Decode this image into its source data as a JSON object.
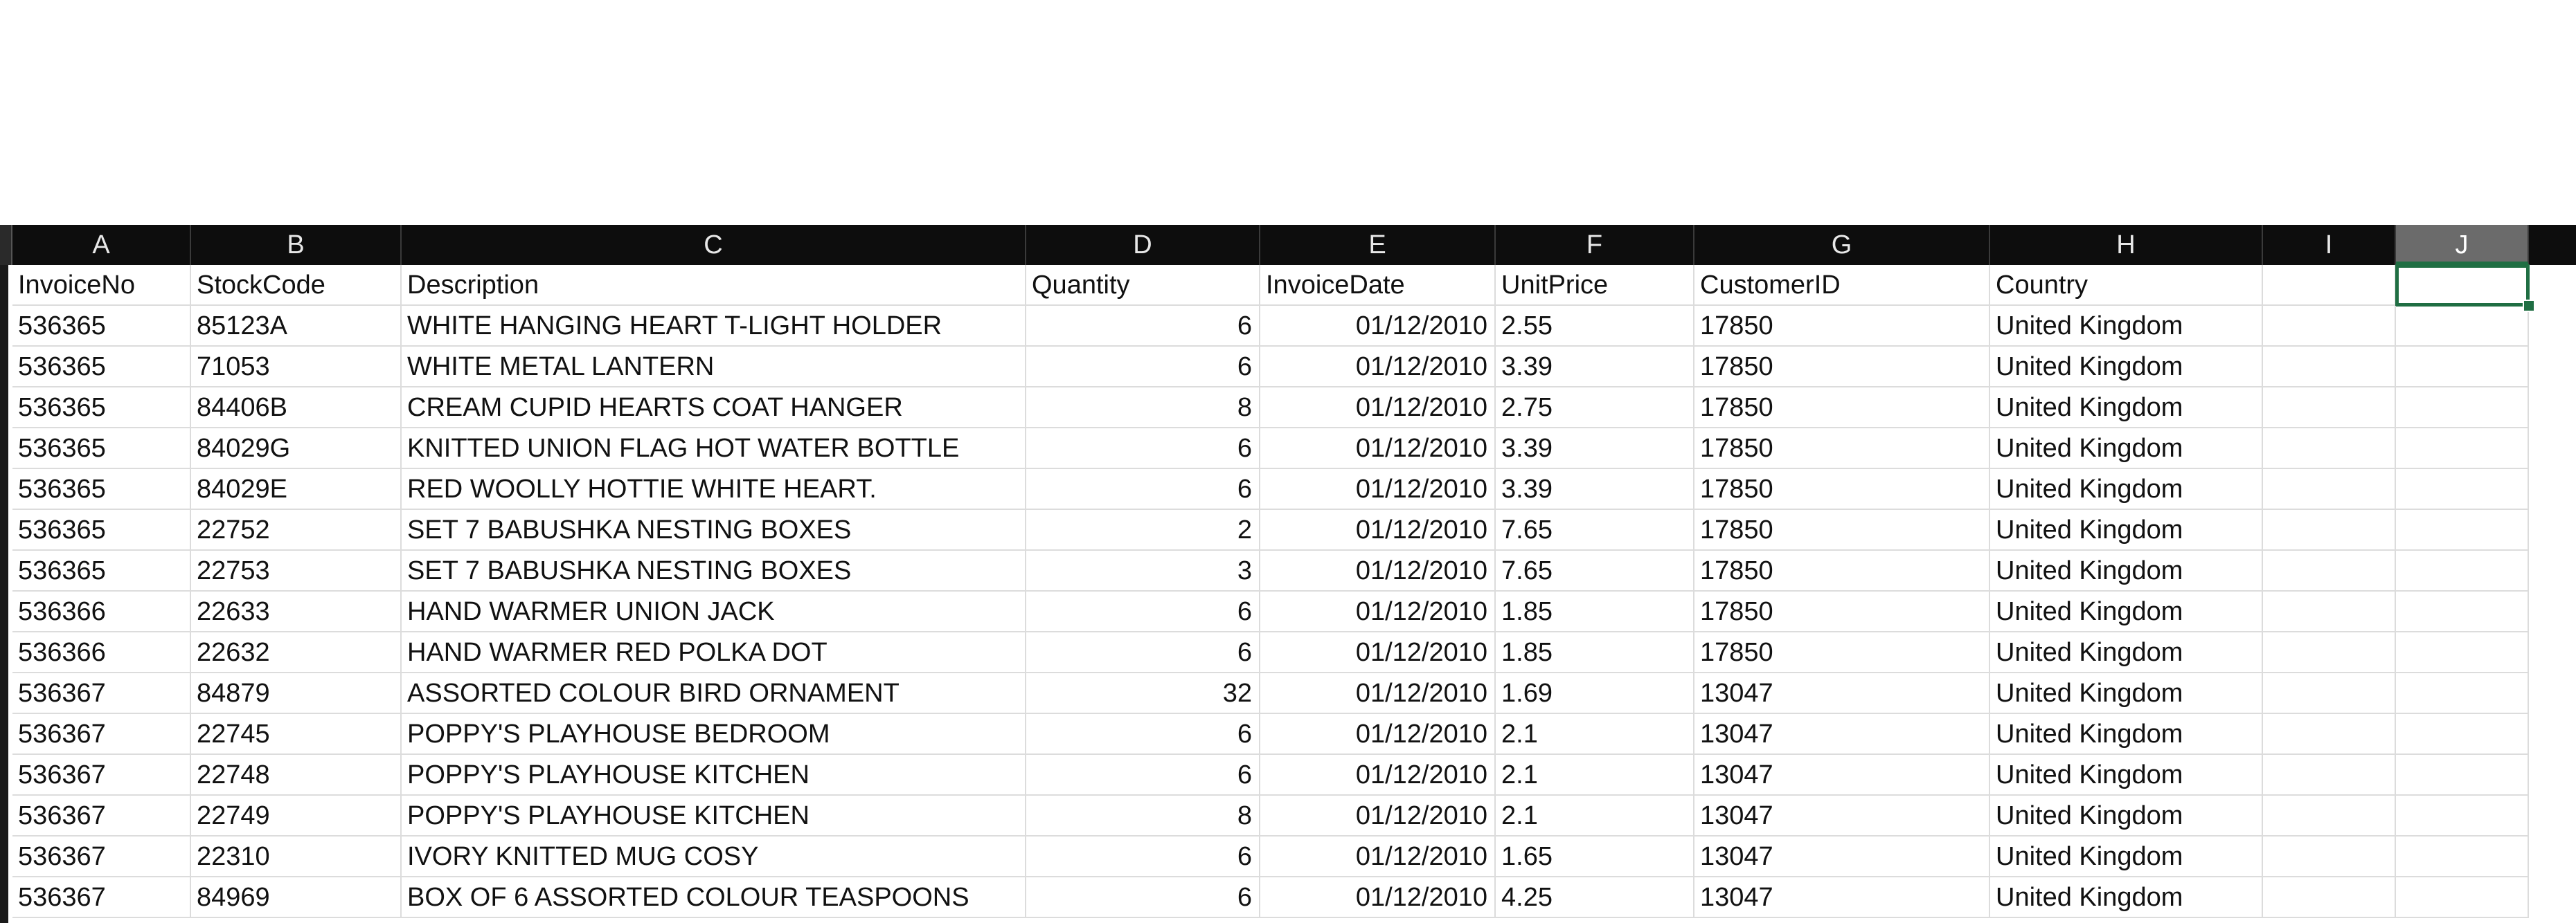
{
  "sheet": {
    "columns": [
      "A",
      "B",
      "C",
      "D",
      "E",
      "F",
      "G",
      "H",
      "I",
      "J"
    ],
    "selected_column": "J",
    "headers": [
      "InvoiceNo",
      "StockCode",
      "Description",
      "Quantity",
      "InvoiceDate",
      "UnitPrice",
      "CustomerID",
      "Country"
    ],
    "rows": [
      [
        "536365",
        "85123A",
        "WHITE HANGING HEART T-LIGHT HOLDER",
        "6",
        "01/12/2010",
        "2.55",
        "17850",
        "United Kingdom"
      ],
      [
        "536365",
        "71053",
        "WHITE METAL LANTERN",
        "6",
        "01/12/2010",
        "3.39",
        "17850",
        "United Kingdom"
      ],
      [
        "536365",
        "84406B",
        "CREAM CUPID HEARTS COAT HANGER",
        "8",
        "01/12/2010",
        "2.75",
        "17850",
        "United Kingdom"
      ],
      [
        "536365",
        "84029G",
        "KNITTED UNION FLAG HOT WATER BOTTLE",
        "6",
        "01/12/2010",
        "3.39",
        "17850",
        "United Kingdom"
      ],
      [
        "536365",
        "84029E",
        "RED WOOLLY HOTTIE WHITE HEART.",
        "6",
        "01/12/2010",
        "3.39",
        "17850",
        "United Kingdom"
      ],
      [
        "536365",
        "22752",
        "SET 7 BABUSHKA NESTING BOXES",
        "2",
        "01/12/2010",
        "7.65",
        "17850",
        "United Kingdom"
      ],
      [
        "536365",
        "22753",
        "SET 7 BABUSHKA NESTING BOXES",
        "3",
        "01/12/2010",
        "7.65",
        "17850",
        "United Kingdom"
      ],
      [
        "536366",
        "22633",
        "HAND WARMER UNION JACK",
        "6",
        "01/12/2010",
        "1.85",
        "17850",
        "United Kingdom"
      ],
      [
        "536366",
        "22632",
        "HAND WARMER RED POLKA DOT",
        "6",
        "01/12/2010",
        "1.85",
        "17850",
        "United Kingdom"
      ],
      [
        "536367",
        "84879",
        "ASSORTED COLOUR BIRD ORNAMENT",
        "32",
        "01/12/2010",
        "1.69",
        "13047",
        "United Kingdom"
      ],
      [
        "536367",
        "22745",
        "POPPY'S PLAYHOUSE BEDROOM",
        "6",
        "01/12/2010",
        "2.1",
        "13047",
        "United Kingdom"
      ],
      [
        "536367",
        "22748",
        "POPPY'S PLAYHOUSE KITCHEN",
        "6",
        "01/12/2010",
        "2.1",
        "13047",
        "United Kingdom"
      ],
      [
        "536367",
        "22749",
        "POPPY'S PLAYHOUSE KITCHEN",
        "8",
        "01/12/2010",
        "2.1",
        "13047",
        "United Kingdom"
      ],
      [
        "536367",
        "22310",
        "IVORY KNITTED MUG COSY",
        "6",
        "01/12/2010",
        "1.65",
        "13047",
        "United Kingdom"
      ],
      [
        "536367",
        "84969",
        "BOX OF 6 ASSORTED COLOUR TEASPOONS",
        "6",
        "01/12/2010",
        "4.25",
        "13047",
        "United Kingdom"
      ]
    ],
    "active_cell": "J1",
    "colors": {
      "header_bg": "#0d0d0d",
      "selected_header_bg": "#6b6b6b",
      "active_border": "#1f6e43",
      "gridline": "#dcdcdc"
    }
  }
}
